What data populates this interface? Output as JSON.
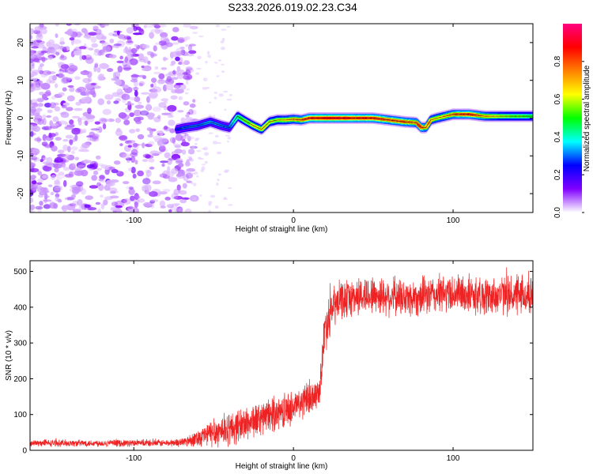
{
  "figure_title": "S233.2026.019.02.23.C34",
  "chart_data": [
    {
      "type": "heatmap",
      "title": "S233.2026.019.02.23.C34",
      "xlabel": "Height of straight line (km)",
      "ylabel": "Frequency (Hz)",
      "xlim": [
        -165,
        150
      ],
      "ylim": [
        -25,
        25
      ],
      "x_ticks": [
        -100,
        0,
        100
      ],
      "x_tick_labels": [
        "-100",
        "0",
        "100"
      ],
      "y_ticks": [
        -20,
        -10,
        0,
        10,
        20
      ],
      "y_tick_labels": [
        "-20",
        "-10",
        "0",
        "10",
        "20"
      ],
      "colorbar": {
        "label": "Normalized spectral amplitude",
        "range": [
          0,
          1
        ],
        "ticks": [
          0,
          0.2,
          0.4,
          0.6,
          0.8
        ],
        "tick_labels": [
          "0.0",
          "0.2",
          "0.4",
          "0.6",
          "0.8"
        ],
        "colors": [
          "#ffffff",
          "#8000ff",
          "#0000ff",
          "#00ffff",
          "#00ff00",
          "#ffff00",
          "#ff8000",
          "#ff0000",
          "#ff0080"
        ]
      },
      "noise_region_x": [
        -165,
        -68
      ],
      "signal_ridge": {
        "x": [
          -73,
          -68,
          -60,
          -52,
          -45,
          -40,
          -35,
          -30,
          -25,
          -20,
          -15,
          -10,
          -5,
          0,
          5,
          10,
          20,
          30,
          40,
          50,
          60,
          70,
          77,
          80,
          83,
          86,
          90,
          95,
          100,
          110,
          120,
          130,
          140,
          150
        ],
        "freq": [
          -3,
          -2.5,
          -2,
          -1,
          -2,
          -2.5,
          0.5,
          -0.8,
          -2,
          -3,
          -1,
          -0.5,
          -0.5,
          -0.3,
          -0.5,
          0,
          0,
          0,
          0,
          0,
          -0.5,
          -1,
          -1.2,
          -2.5,
          -2.5,
          -0.5,
          0,
          0.5,
          1,
          1,
          0.5,
          0.5,
          0.5,
          0.5
        ],
        "amplitude": [
          0.25,
          0.3,
          0.3,
          0.35,
          0.3,
          0.3,
          0.45,
          0.55,
          0.6,
          0.65,
          0.6,
          0.6,
          0.65,
          0.7,
          0.75,
          0.85,
          0.9,
          0.9,
          0.85,
          0.85,
          0.8,
          0.8,
          0.75,
          0.85,
          0.7,
          0.7,
          0.65,
          0.7,
          0.75,
          0.85,
          0.7,
          0.6,
          0.55,
          0.5
        ]
      }
    },
    {
      "type": "line",
      "xlabel": "Height of straight line (km)",
      "ylabel": "SNR (10 * v/v)",
      "xlim": [
        -165,
        150
      ],
      "ylim": [
        0,
        530
      ],
      "x_ticks": [
        -100,
        0,
        100
      ],
      "x_tick_labels": [
        "-100",
        "0",
        "100"
      ],
      "y_ticks": [
        0,
        100,
        200,
        300,
        400,
        500
      ],
      "y_tick_labels": [
        "0",
        "100",
        "200",
        "300",
        "400",
        "500"
      ],
      "series": [
        {
          "name": "SNR",
          "color": "#ee2222",
          "x": [
            -165,
            -140,
            -120,
            -100,
            -80,
            -70,
            -60,
            -50,
            -40,
            -30,
            -20,
            -10,
            0,
            10,
            16,
            18,
            20,
            25,
            30,
            40,
            50,
            60,
            70,
            80,
            90,
            100,
            110,
            120,
            130,
            140,
            150
          ],
          "mean": [
            20,
            20,
            20,
            20,
            20,
            22,
            35,
            50,
            60,
            75,
            90,
            105,
            120,
            145,
            160,
            250,
            350,
            400,
            420,
            430,
            435,
            430,
            425,
            430,
            435,
            440,
            435,
            430,
            435,
            430,
            430
          ],
          "noise_amplitude": [
            8,
            8,
            8,
            8,
            8,
            10,
            20,
            35,
            40,
            40,
            40,
            40,
            40,
            40,
            30,
            50,
            60,
            50,
            45,
            45,
            45,
            45,
            45,
            45,
            45,
            45,
            45,
            45,
            45,
            45,
            45
          ]
        }
      ]
    }
  ]
}
